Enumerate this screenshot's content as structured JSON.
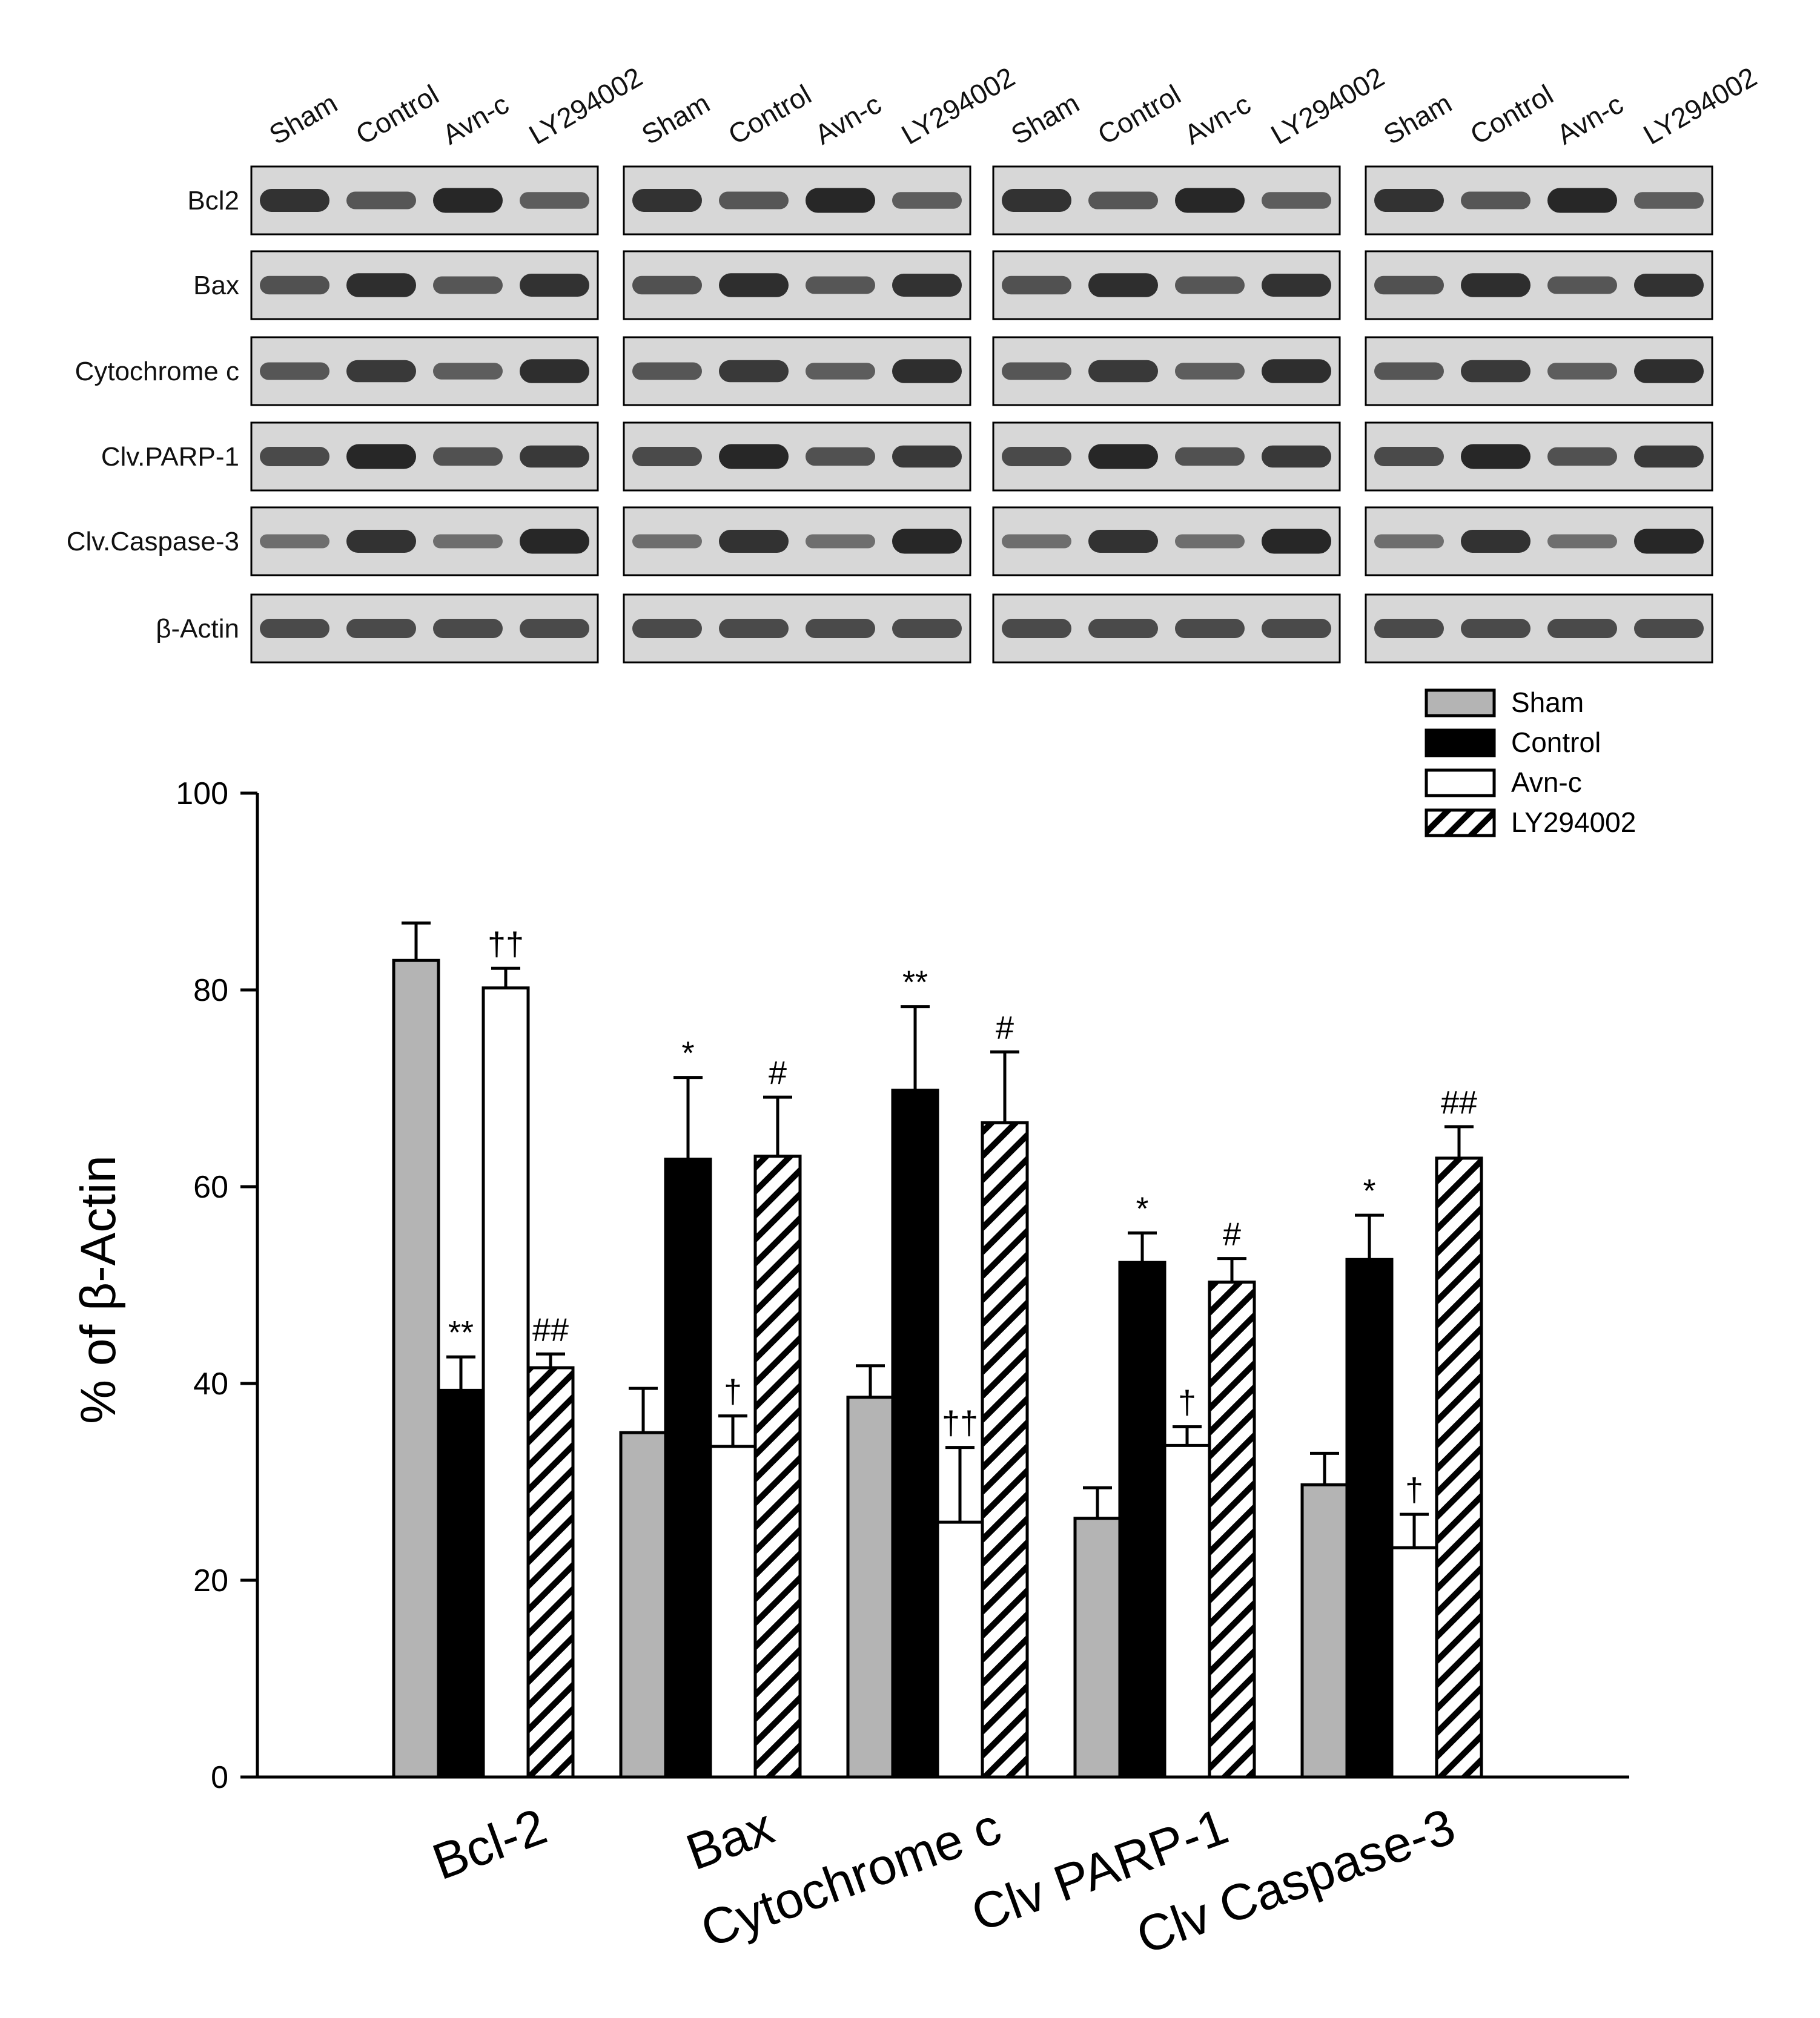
{
  "blots": {
    "lane_labels": [
      "Sham",
      "Control",
      "Avn-c",
      "LY294002"
    ],
    "row_labels": [
      "Bcl2",
      "Bax",
      "Cytochrome c",
      "Clv.PARP-1",
      "Clv.Caspase-3",
      "β-Actin"
    ],
    "panel_count": 4
  },
  "chart_data": {
    "type": "bar",
    "title": "",
    "xlabel": "",
    "ylabel": "% of β-Actin",
    "ylim": [
      0,
      100
    ],
    "yticks": [
      "0",
      "20",
      "40",
      "60",
      "80",
      "100"
    ],
    "grid": false,
    "legend_position": "top-right",
    "categories": [
      "Bcl-2",
      "Bax",
      "Cytochrome c",
      "Clv PARP-1",
      "Clv Caspase-3"
    ],
    "series": [
      {
        "name": "Sham",
        "pattern": "gray",
        "color": "#b4b4b4",
        "values": [
          83,
          35,
          38.6,
          26.3,
          29.7
        ],
        "errors": [
          3.8,
          4.5,
          3.2,
          3.1,
          3.2
        ],
        "annotations": [
          "",
          "",
          "",
          "",
          ""
        ]
      },
      {
        "name": "Control",
        "pattern": "black",
        "color": "#000000",
        "values": [
          39.3,
          62.8,
          69.8,
          52.3,
          52.6
        ],
        "errors": [
          3.4,
          8.3,
          8.5,
          3.0,
          4.5
        ],
        "annotations": [
          "**",
          "*",
          "**",
          "*",
          "*"
        ]
      },
      {
        "name": "Avn-c",
        "pattern": "white",
        "color": "#ffffff",
        "values": [
          80.2,
          33.6,
          25.9,
          33.7,
          23.3
        ],
        "errors": [
          2.0,
          3.1,
          7.6,
          1.9,
          3.4
        ],
        "annotations": [
          "††",
          "†",
          "††",
          "†",
          "†"
        ]
      },
      {
        "name": "LY294002",
        "pattern": "hatch",
        "color": "#ffffff",
        "values": [
          41.6,
          63.1,
          66.5,
          50.3,
          62.9
        ],
        "errors": [
          1.4,
          6.0,
          7.2,
          2.4,
          3.2
        ],
        "annotations": [
          "##",
          "#",
          "#",
          "#",
          "##"
        ]
      }
    ]
  }
}
